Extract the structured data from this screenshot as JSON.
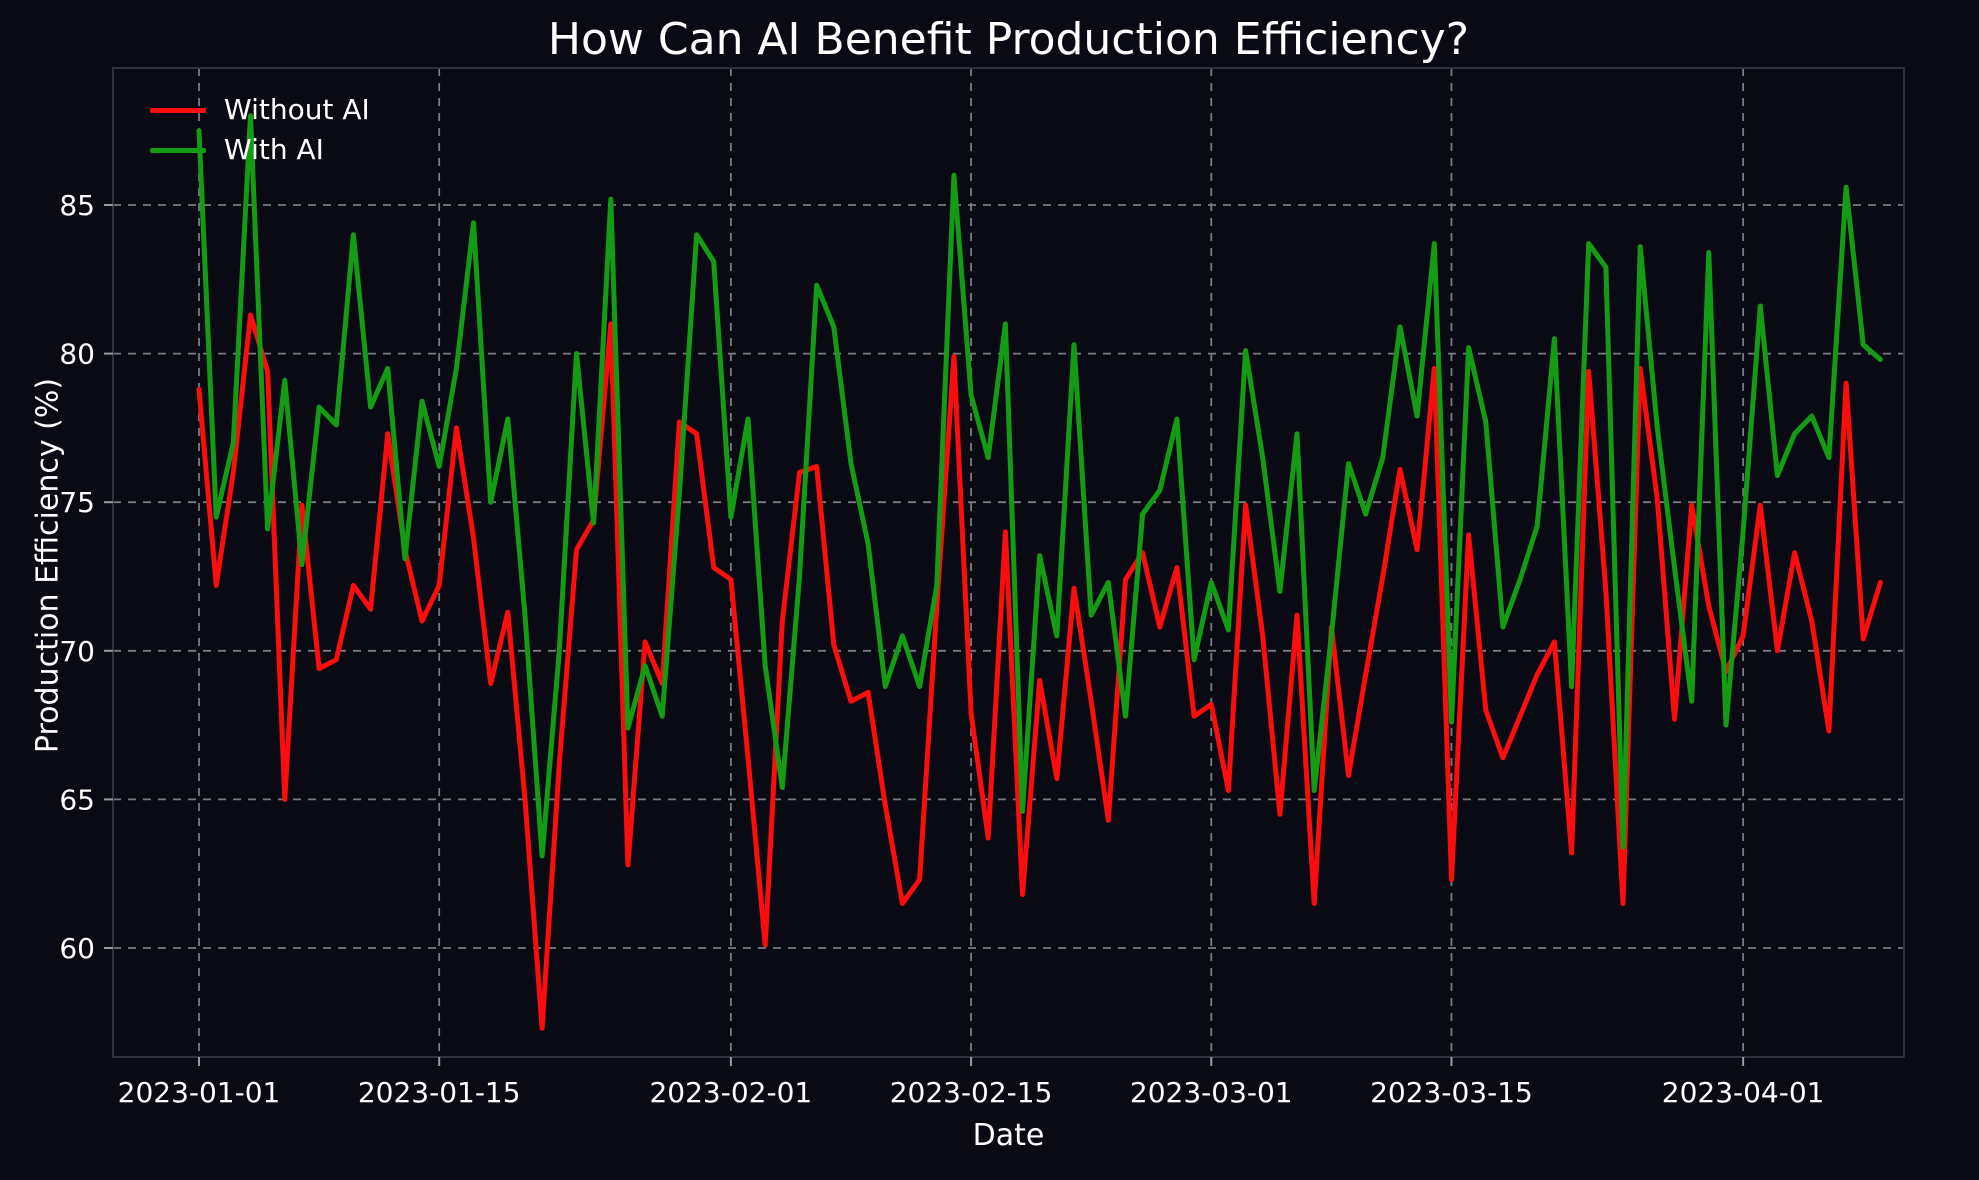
{
  "title": "How Can AI Benefit Production Efficiency?",
  "axes": {
    "xlabel": "Date",
    "ylabel": "Production Efficiency (%)",
    "yticks": [
      60,
      65,
      70,
      75,
      80,
      85
    ],
    "xtick_labels": [
      "2023-01-01",
      "2023-01-15",
      "2023-02-01",
      "2023-02-15",
      "2023-03-01",
      "2023-03-15",
      "2023-04-01"
    ],
    "xtick_days": [
      0,
      14,
      31,
      45,
      59,
      73,
      90
    ]
  },
  "legend": {
    "items": [
      {
        "label": "Without AI",
        "color": "#fb0d0d"
      },
      {
        "label": "With AI",
        "color": "#149b14"
      }
    ]
  },
  "colors": {
    "background": "#0a0a14",
    "text": "#ffffff",
    "grid": "#a0a0a8",
    "spine": "#30303c",
    "tick": "#9a9aa2",
    "without_ai": "#fb0d0d",
    "with_ai": "#149b14"
  },
  "chart_data": {
    "type": "line",
    "title": "How Can AI Benefit Production Efficiency?",
    "xlabel": "Date",
    "ylabel": "Production Efficiency (%)",
    "ylim": [
      56.3,
      89.7
    ],
    "grid": true,
    "grid_style": "dashed",
    "legend_position": "upper left",
    "x": [
      "2023-01-01",
      "2023-01-02",
      "2023-01-03",
      "2023-01-04",
      "2023-01-05",
      "2023-01-06",
      "2023-01-07",
      "2023-01-08",
      "2023-01-09",
      "2023-01-10",
      "2023-01-11",
      "2023-01-12",
      "2023-01-13",
      "2023-01-14",
      "2023-01-15",
      "2023-01-16",
      "2023-01-17",
      "2023-01-18",
      "2023-01-19",
      "2023-01-20",
      "2023-01-21",
      "2023-01-22",
      "2023-01-23",
      "2023-01-24",
      "2023-01-25",
      "2023-01-26",
      "2023-01-27",
      "2023-01-28",
      "2023-01-29",
      "2023-01-30",
      "2023-01-31",
      "2023-02-01",
      "2023-02-02",
      "2023-02-03",
      "2023-02-04",
      "2023-02-05",
      "2023-02-06",
      "2023-02-07",
      "2023-02-08",
      "2023-02-09",
      "2023-02-10",
      "2023-02-11",
      "2023-02-12",
      "2023-02-13",
      "2023-02-14",
      "2023-02-15",
      "2023-02-16",
      "2023-02-17",
      "2023-02-18",
      "2023-02-19",
      "2023-02-20",
      "2023-02-21",
      "2023-02-22",
      "2023-02-23",
      "2023-02-24",
      "2023-02-25",
      "2023-02-26",
      "2023-02-27",
      "2023-02-28",
      "2023-03-01",
      "2023-03-02",
      "2023-03-03",
      "2023-03-04",
      "2023-03-05",
      "2023-03-06",
      "2023-03-07",
      "2023-03-08",
      "2023-03-09",
      "2023-03-10",
      "2023-03-11",
      "2023-03-12",
      "2023-03-13",
      "2023-03-14",
      "2023-03-15",
      "2023-03-16",
      "2023-03-17",
      "2023-03-18",
      "2023-03-19",
      "2023-03-20",
      "2023-03-21",
      "2023-03-22",
      "2023-03-23",
      "2023-03-24",
      "2023-03-25",
      "2023-03-26",
      "2023-03-27",
      "2023-03-28",
      "2023-03-29",
      "2023-03-30",
      "2023-03-31",
      "2023-04-01",
      "2023-04-02",
      "2023-04-03",
      "2023-04-04",
      "2023-04-05",
      "2023-04-06",
      "2023-04-07",
      "2023-04-08",
      "2023-04-09"
    ],
    "series": [
      {
        "name": "Without AI",
        "color": "#fb0d0d",
        "values": [
          78.8,
          72.2,
          76.0,
          81.3,
          79.4,
          65.0,
          74.9,
          69.4,
          69.7,
          72.2,
          71.4,
          77.3,
          73.4,
          71.0,
          72.2,
          77.5,
          73.8,
          68.9,
          71.3,
          65.0,
          57.3,
          66.2,
          73.4,
          74.4,
          81.0,
          62.8,
          70.3,
          68.9,
          77.7,
          77.3,
          72.8,
          72.4,
          66.4,
          60.1,
          71.0,
          76.0,
          76.2,
          70.2,
          68.3,
          68.6,
          64.8,
          61.5,
          62.3,
          71.5,
          79.9,
          67.9,
          63.7,
          74.0,
          61.8,
          69.0,
          65.7,
          72.1,
          68.3,
          64.3,
          72.4,
          73.3,
          70.8,
          72.8,
          67.8,
          68.2,
          65.3,
          74.9,
          70.5,
          64.5,
          71.2,
          61.5,
          70.8,
          65.8,
          69.2,
          72.5,
          76.1,
          73.4,
          79.5,
          62.3,
          73.9,
          68.0,
          66.4,
          67.8,
          69.2,
          70.3,
          63.2,
          79.4,
          72.0,
          61.5,
          79.5,
          75.1,
          67.7,
          74.9,
          71.5,
          69.3,
          70.5,
          74.9,
          70.0,
          73.3,
          71.0,
          67.3,
          79.0,
          70.4,
          72.3
        ]
      },
      {
        "name": "With AI",
        "color": "#149b14",
        "values": [
          87.5,
          74.5,
          77.0,
          88.0,
          74.1,
          79.1,
          72.9,
          78.2,
          77.6,
          84.0,
          78.2,
          79.5,
          73.1,
          78.4,
          76.2,
          79.5,
          84.4,
          75.0,
          77.8,
          71.2,
          63.1,
          70.0,
          80.0,
          74.3,
          85.2,
          67.4,
          69.5,
          67.8,
          75.3,
          84.0,
          83.1,
          74.5,
          77.8,
          69.5,
          65.4,
          72.5,
          82.3,
          80.9,
          76.3,
          73.6,
          68.8,
          70.5,
          68.8,
          72.2,
          86.0,
          78.6,
          76.5,
          81.0,
          64.6,
          73.2,
          70.5,
          80.3,
          71.2,
          72.3,
          67.8,
          74.6,
          75.4,
          77.8,
          69.7,
          72.3,
          70.7,
          80.1,
          76.5,
          72.0,
          77.3,
          65.3,
          70.5,
          76.3,
          74.6,
          76.5,
          80.9,
          77.9,
          83.7,
          67.6,
          80.2,
          77.7,
          70.8,
          72.4,
          74.2,
          80.5,
          68.8,
          83.7,
          82.9,
          63.4,
          83.6,
          77.5,
          72.8,
          68.3,
          83.4,
          67.5,
          74.0,
          81.6,
          75.9,
          77.3,
          77.9,
          76.5,
          85.6,
          80.3,
          79.8
        ]
      }
    ]
  }
}
